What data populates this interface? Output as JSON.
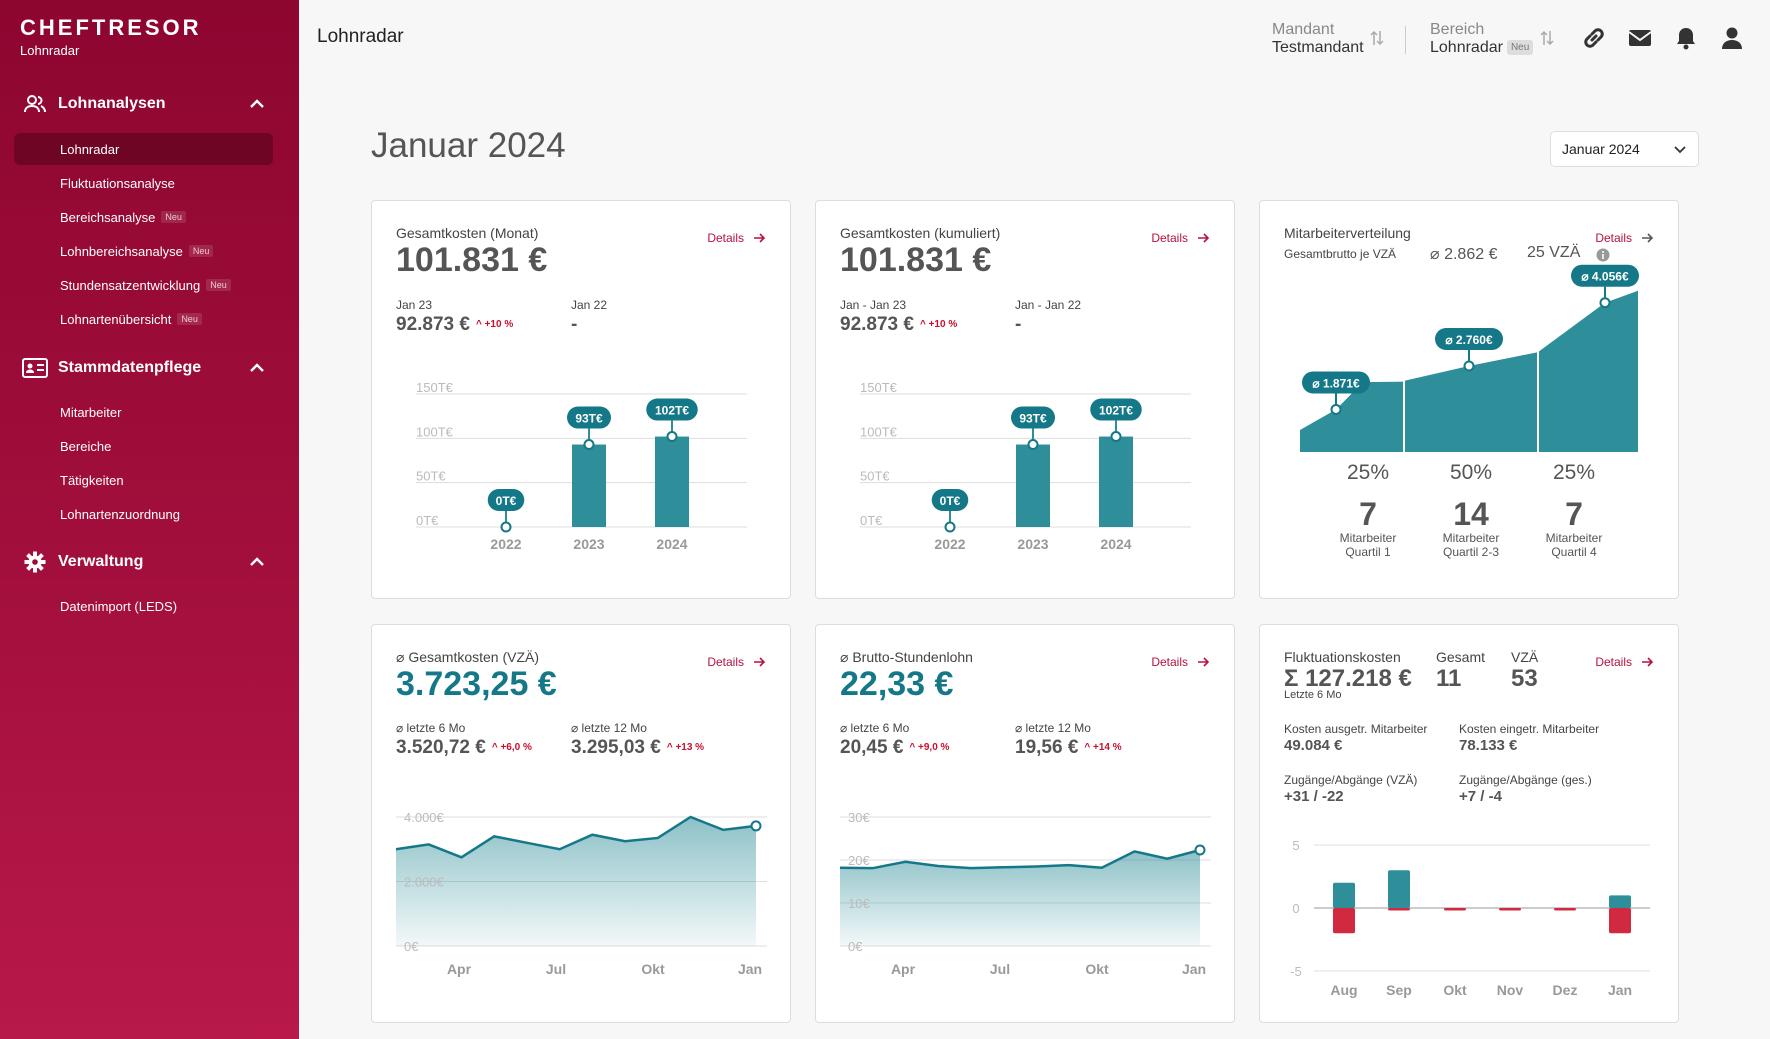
{
  "app": {
    "brand": "CHEFTRESOR",
    "brand_sub": "Lohnradar"
  },
  "sidebar": {
    "sections": [
      {
        "title": "Lohnanalysen",
        "icon": "users-icon",
        "items": [
          {
            "label": "Lohnradar",
            "neu": "",
            "active": true
          },
          {
            "label": "Fluktuationsanalyse",
            "neu": ""
          },
          {
            "label": "Bereichsanalyse",
            "neu": "Neu"
          },
          {
            "label": "Lohnbereichsanalyse",
            "neu": "Neu"
          },
          {
            "label": "Stundensatzentwicklung",
            "neu": "Neu"
          },
          {
            "label": "Lohnartenübersicht",
            "neu": "Neu"
          }
        ]
      },
      {
        "title": "Stammdatenpflege",
        "icon": "id-card-icon",
        "items": [
          {
            "label": "Mitarbeiter",
            "neu": ""
          },
          {
            "label": "Bereiche",
            "neu": ""
          },
          {
            "label": "Tätigkeiten",
            "neu": ""
          },
          {
            "label": "Lohnartenzuordnung",
            "neu": ""
          }
        ]
      },
      {
        "title": "Verwaltung",
        "icon": "gear-icon",
        "items": [
          {
            "label": "Datenimport (LEDS)",
            "neu": ""
          }
        ]
      }
    ]
  },
  "topbar": {
    "title": "Lohnradar",
    "mandant_label": "Mandant",
    "mandant_value": "Testmandant",
    "bereich_label": "Bereich",
    "bereich_value": "Lohnradar",
    "bereich_badge": "Neu",
    "icons": [
      "link-icon",
      "mail-icon",
      "bell-icon",
      "user-icon"
    ]
  },
  "page": {
    "heading": "Januar 2024",
    "month_select": "Januar 2024"
  },
  "colors": {
    "brand": "#a30f3c",
    "teal": "#2e8e99",
    "accent_teal": "#157888",
    "negative": "#d1293f"
  },
  "cards": {
    "details": "Details",
    "monat": {
      "label": "Gesamtkosten (Monat)",
      "value": "101.831 €",
      "left_label": "Jan 23",
      "left_value": "92.873 €",
      "left_change": "+10 %",
      "right_label": "Jan 22",
      "right_value": "-"
    },
    "kumuliert": {
      "label": "Gesamtkosten (kumuliert)",
      "value": "101.831 €",
      "left_label": "Jan - Jan 23",
      "left_value": "92.873 €",
      "left_change": "+10 %",
      "right_label": "Jan - Jan 22",
      "right_value": "-"
    },
    "verteilung": {
      "label": "Mitarbeiterverteilung",
      "sublabel": "Gesamtbrutto je VZÄ",
      "avg": "⌀ 2.862 €",
      "vza": "25 VZÄ"
    },
    "vza": {
      "label": "⌀ Gesamtkosten (VZÄ)",
      "value": "3.723,25 €",
      "left_label": "⌀ letzte 6 Mo",
      "left_value": "3.520,72 €",
      "left_change": "+6,0 %",
      "right_label": "⌀ letzte 12 Mo",
      "right_value": "3.295,03 €",
      "right_change": "+13 %"
    },
    "stunden": {
      "label": "⌀ Brutto-Stundenlohn",
      "value": "22,33 €",
      "left_label": "⌀ letzte 6 Mo",
      "left_value": "20,45 €",
      "left_change": "+9,0 %",
      "right_label": "⌀ letzte 12 Mo",
      "right_value": "19,56 €",
      "right_change": "+14 %"
    },
    "fluktuation": {
      "label": "Fluktuationskosten",
      "value": "Σ 127.218 €",
      "period": "Letzte 6 Mo",
      "gesamt_label": "Gesamt",
      "gesamt_value": "11",
      "vza_label": "VZÄ",
      "vza_value": "53",
      "k1_label": "Kosten ausgetr. Mitarbeiter",
      "k1_value": "49.084 €",
      "k2_label": "Kosten eingetr. Mitarbeiter",
      "k2_value": "78.133 €",
      "z1_label": "Zugänge/Abgänge (VZÄ)",
      "z1_value": "+31 / -22",
      "z2_label": "Zugänge/Abgänge (ges.)",
      "z2_value": "+7 / -4"
    }
  },
  "chart_data": [
    {
      "type": "bar",
      "id": "gesamtkosten_monat",
      "categories": [
        "2022",
        "2023",
        "2024"
      ],
      "values": [
        0,
        93,
        102
      ],
      "labels": [
        "0T€",
        "93T€",
        "102T€"
      ],
      "yticks": [
        "0T€",
        "50T€",
        "100T€",
        "150T€"
      ],
      "ylim": [
        0,
        150
      ]
    },
    {
      "type": "bar",
      "id": "gesamtkosten_kumuliert",
      "categories": [
        "2022",
        "2023",
        "2024"
      ],
      "values": [
        0,
        93,
        102
      ],
      "labels": [
        "0T€",
        "93T€",
        "102T€"
      ],
      "yticks": [
        "0T€",
        "50T€",
        "100T€",
        "150T€"
      ],
      "ylim": [
        0,
        150
      ]
    },
    {
      "type": "area",
      "id": "mitarbeiterverteilung",
      "segments": [
        {
          "percent": "25%",
          "count": "7",
          "caption1": "Mitarbeiter",
          "caption2": "Quartil 1",
          "median_label": "⌀ 1.871€",
          "median": 1871
        },
        {
          "percent": "50%",
          "count": "14",
          "caption1": "Mitarbeiter",
          "caption2": "Quartil 2-3",
          "median_label": "⌀ 2.760€",
          "median": 2760
        },
        {
          "percent": "25%",
          "count": "7",
          "caption1": "Mitarbeiter",
          "caption2": "Quartil 4",
          "median_label": "⌀ 4.056€",
          "median": 4056
        }
      ]
    },
    {
      "type": "area",
      "id": "gesamtkosten_vza",
      "x_ticks": [
        "Apr",
        "Jul",
        "Okt",
        "Jan"
      ],
      "yticks": [
        "0€",
        "2.000€",
        "4.000€"
      ],
      "ylim": [
        0,
        4000
      ],
      "values": [
        3000,
        3150,
        2750,
        3400,
        3200,
        3000,
        3450,
        3250,
        3350,
        4000,
        3600,
        3723.25
      ]
    },
    {
      "type": "area",
      "id": "brutto_stundenlohn",
      "x_ticks": [
        "Apr",
        "Jul",
        "Okt",
        "Jan"
      ],
      "yticks": [
        "0€",
        "10€",
        "20€",
        "30€"
      ],
      "ylim": [
        0,
        30
      ],
      "values": [
        18.2,
        18.1,
        19.6,
        18.6,
        18.1,
        18.3,
        18.5,
        18.8,
        18.2,
        22.0,
        20.3,
        22.33
      ]
    },
    {
      "type": "bar",
      "id": "fluktuation",
      "categories": [
        "Aug",
        "Sep",
        "Okt",
        "Nov",
        "Dez",
        "Jan"
      ],
      "yticks": [
        "-5",
        "0",
        "5"
      ],
      "ylim": [
        -5,
        5
      ],
      "series": [
        {
          "values": [
            2.0,
            3.0,
            0,
            0,
            0,
            1.0
          ]
        },
        {
          "values": [
            -2.0,
            -0.2,
            -0.2,
            -0.2,
            -0.2,
            -2.0
          ]
        }
      ]
    }
  ]
}
